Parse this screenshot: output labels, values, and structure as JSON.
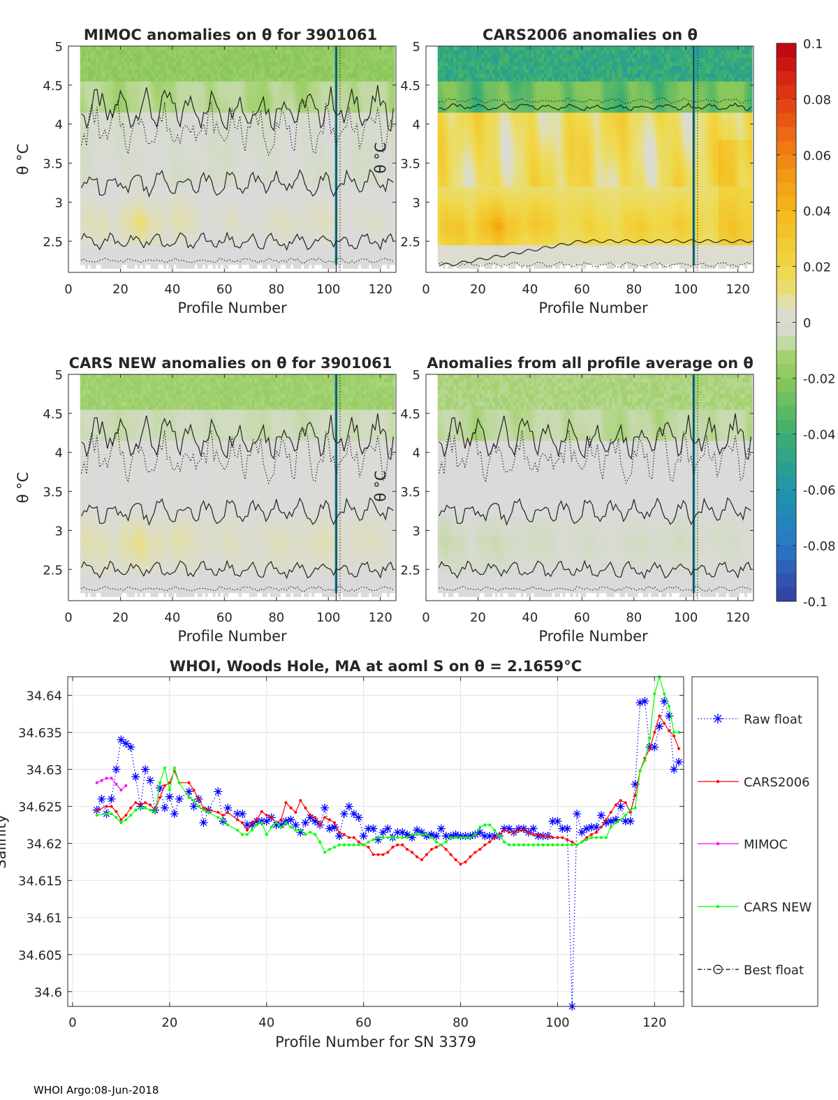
{
  "footer": "WHOI Argo:08-Jun-2018",
  "chart_data": [
    {
      "type": "heatmap",
      "title": "MIMOC anomalies on θ  for 3901061",
      "xlabel": "Profile Number",
      "ylabel": "θ °C",
      "xlim": [
        0,
        126
      ],
      "ylim": [
        2.1,
        5
      ],
      "xticks": [
        0,
        20,
        40,
        60,
        80,
        100,
        120
      ],
      "yticks": [
        2.5,
        3,
        3.5,
        4,
        4.5,
        5
      ],
      "data_xrange": [
        5,
        125
      ],
      "field": {
        "surface": -0.02,
        "upper": -0.012,
        "mid": -0.003,
        "warm_band": 0.012,
        "deep": 0.0,
        "warm_center": 2.75,
        "warm_peak_profile": 25
      }
    },
    {
      "type": "heatmap",
      "title": "CARS2006 anomalies on θ",
      "xlabel": "Profile Number",
      "ylabel": "θ °C",
      "xlim": [
        0,
        126
      ],
      "ylim": [
        2.1,
        5
      ],
      "xticks": [
        0,
        20,
        40,
        60,
        80,
        100,
        120
      ],
      "yticks": [
        2.5,
        3,
        3.5,
        4,
        4.5,
        5
      ],
      "data_xrange": [
        5,
        125
      ],
      "field": {
        "surface": -0.05,
        "upper": -0.035,
        "mid": 0.025,
        "warm_band": 0.035,
        "deep": 0.002,
        "warm_center": 2.7,
        "warm_peak_profile": 22
      }
    },
    {
      "type": "heatmap",
      "title": "CARS NEW anomalies on θ for 3901061",
      "xlabel": "Profile Number",
      "ylabel": "θ °C",
      "xlim": [
        0,
        126
      ],
      "ylim": [
        2.1,
        5
      ],
      "xticks": [
        0,
        20,
        40,
        60,
        80,
        100,
        120
      ],
      "yticks": [
        2.5,
        3,
        3.5,
        4,
        4.5,
        5
      ],
      "data_xrange": [
        5,
        125
      ],
      "field": {
        "surface": -0.015,
        "upper": -0.006,
        "mid": 0.001,
        "warm_band": 0.01,
        "deep": 0.0,
        "warm_center": 2.85,
        "warm_peak_profile": 22
      }
    },
    {
      "type": "heatmap",
      "title": "Anomalies from all profile average on θ",
      "xlabel": "Profile Number",
      "ylabel": "θ °C",
      "xlim": [
        0,
        126
      ],
      "ylim": [
        2.1,
        5
      ],
      "xticks": [
        0,
        20,
        40,
        60,
        80,
        100,
        120
      ],
      "yticks": [
        2.5,
        3,
        3.5,
        4,
        4.5,
        5
      ],
      "data_xrange": [
        5,
        125
      ],
      "field": {
        "surface": -0.012,
        "upper": -0.01,
        "mid": 0.0,
        "warm_band": -0.008,
        "deep": 0.0,
        "warm_center": 2.85,
        "warm_peak_profile": 10
      }
    },
    {
      "type": "colorbar",
      "ticks": [
        "0.1",
        "0.08",
        "0.06",
        "0.04",
        "0.02",
        "0",
        "-0.02",
        "-0.04",
        "-0.06",
        "-0.08",
        "-0.1"
      ],
      "range": [
        -0.1,
        0.1
      ],
      "colormap": "parula"
    },
    {
      "type": "line",
      "title": "WHOI, Woods Hole, MA at aoml S on θ = 2.1659°C",
      "xlabel": "Profile Number for SN 3379",
      "ylabel": "Salinity",
      "xlim": [
        -1,
        126
      ],
      "ylim": [
        34.598,
        34.6425
      ],
      "xticks": [
        0,
        20,
        40,
        60,
        80,
        100,
        120
      ],
      "yticks": [
        34.6,
        34.605,
        34.61,
        34.615,
        34.62,
        34.625,
        34.63,
        34.635,
        34.64
      ],
      "grid": true,
      "legend_position": "outside-right",
      "series": [
        {
          "name": "Raw float",
          "color": "#0000ff",
          "style": "dotted-star",
          "x": [
            5,
            6,
            7,
            8,
            9,
            10,
            11,
            12,
            13,
            14,
            15,
            16,
            17,
            18,
            19,
            20,
            21,
            22,
            24,
            25,
            26,
            27,
            28,
            30,
            31,
            32,
            34,
            35,
            36,
            37,
            38,
            39,
            40,
            41,
            42,
            43,
            44,
            45,
            46,
            47,
            48,
            49,
            50,
            51,
            52,
            53,
            54,
            55,
            56,
            57,
            58,
            59,
            60,
            61,
            62,
            63,
            64,
            65,
            66,
            67,
            68,
            69,
            70,
            71,
            72,
            73,
            74,
            75,
            76,
            77,
            78,
            79,
            80,
            81,
            82,
            83,
            84,
            85,
            86,
            87,
            88,
            89,
            90,
            91,
            92,
            93,
            94,
            95,
            96,
            97,
            98,
            99,
            100,
            101,
            102,
            103,
            104,
            105,
            106,
            107,
            108,
            109,
            110,
            111,
            112,
            113,
            114,
            115,
            116,
            117,
            118,
            119,
            120,
            121,
            122,
            123,
            124,
            125
          ],
          "y": [
            34.6245,
            34.626,
            34.624,
            34.626,
            34.63,
            34.634,
            34.6335,
            34.633,
            34.629,
            34.625,
            34.63,
            34.6285,
            34.6245,
            34.6275,
            34.6248,
            34.6263,
            34.624,
            34.626,
            34.627,
            34.625,
            34.626,
            34.6228,
            34.6245,
            34.627,
            34.623,
            34.6248,
            34.624,
            34.624,
            34.6225,
            34.6225,
            34.623,
            34.623,
            34.623,
            34.6235,
            34.6225,
            34.6225,
            34.623,
            34.6232,
            34.6225,
            34.6215,
            34.6228,
            34.6235,
            34.623,
            34.6225,
            34.6248,
            34.622,
            34.6222,
            34.621,
            34.624,
            34.625,
            34.624,
            34.6235,
            34.621,
            34.622,
            34.622,
            34.6205,
            34.6215,
            34.622,
            34.6208,
            34.6215,
            34.6215,
            34.6212,
            34.6208,
            34.6218,
            34.6215,
            34.621,
            34.6212,
            34.621,
            34.622,
            34.621,
            34.621,
            34.6212,
            34.621,
            34.621,
            34.621,
            34.6212,
            34.6215,
            34.621,
            34.621,
            34.621,
            34.621,
            34.622,
            34.622,
            34.6215,
            34.622,
            34.622,
            34.6215,
            34.622,
            34.621,
            34.621,
            34.621,
            34.623,
            34.623,
            34.622,
            34.622,
            34.598,
            34.624,
            34.6215,
            34.622,
            34.6222,
            34.6222,
            34.6238,
            34.6228,
            34.623,
            34.6232,
            34.625,
            34.623,
            34.623,
            34.628,
            34.639,
            34.6392,
            34.633,
            34.633,
            34.6358,
            34.6392,
            34.6372,
            34.63,
            34.631
          ]
        },
        {
          "name": "CARS2006",
          "color": "#ff0000",
          "style": "solid-dot",
          "x": [
            5,
            7,
            8,
            9,
            10,
            11,
            12,
            13,
            14,
            15,
            16,
            17,
            18,
            19,
            20,
            21,
            22,
            24,
            25,
            26,
            27,
            28,
            30,
            31,
            32,
            34,
            35,
            36,
            37,
            38,
            39,
            40,
            41,
            42,
            43,
            44,
            45,
            46,
            47,
            48,
            49,
            50,
            51,
            52,
            53,
            54,
            55,
            56,
            57,
            58,
            59,
            60,
            61,
            62,
            63,
            64,
            65,
            66,
            67,
            68,
            69,
            70,
            71,
            72,
            73,
            74,
            75,
            76,
            77,
            78,
            79,
            80,
            81,
            82,
            83,
            84,
            85,
            86,
            87,
            88,
            89,
            90,
            91,
            92,
            93,
            94,
            95,
            96,
            97,
            98,
            99,
            100,
            101,
            102,
            103,
            104,
            105,
            106,
            107,
            108,
            109,
            110,
            111,
            112,
            113,
            114,
            115,
            116,
            117,
            118,
            119,
            120,
            121,
            122,
            123,
            124,
            125
          ],
          "y": [
            34.6245,
            34.625,
            34.625,
            34.6243,
            34.6232,
            34.6238,
            34.6248,
            34.6255,
            34.6253,
            34.6255,
            34.6252,
            34.6245,
            34.6262,
            34.6278,
            34.6282,
            34.6298,
            34.6282,
            34.6282,
            34.6272,
            34.626,
            34.6248,
            34.6245,
            34.6242,
            34.6238,
            34.6242,
            34.6232,
            34.6228,
            34.6218,
            34.6228,
            34.6232,
            34.6243,
            34.6238,
            34.6235,
            34.6228,
            34.6232,
            34.6255,
            34.6248,
            34.6242,
            34.6258,
            34.6248,
            34.6238,
            34.6235,
            34.6225,
            34.6235,
            34.6232,
            34.6228,
            34.6215,
            34.6212,
            34.6208,
            34.6208,
            34.6202,
            34.6198,
            34.6195,
            34.6185,
            34.6185,
            34.6185,
            34.6188,
            34.6195,
            34.6198,
            34.6198,
            34.6192,
            34.6188,
            34.6182,
            34.6178,
            34.6185,
            34.6192,
            34.6195,
            34.6198,
            34.6192,
            34.6185,
            34.6178,
            34.6172,
            34.6175,
            34.6182,
            34.6188,
            34.6192,
            34.6198,
            34.6202,
            34.6208,
            34.6212,
            34.6218,
            34.6215,
            34.6215,
            34.6218,
            34.6218,
            34.6215,
            34.6212,
            34.6212,
            34.621,
            34.621,
            34.6208,
            34.6208,
            34.6208,
            34.6205,
            34.6202,
            34.6198,
            34.6202,
            34.6208,
            34.6212,
            34.6215,
            34.6222,
            34.6232,
            34.6242,
            34.6252,
            34.6258,
            34.6255,
            34.6242,
            34.6265,
            34.6298,
            34.6315,
            34.6328,
            34.635,
            34.6372,
            34.6362,
            34.6352,
            34.6345,
            34.6328
          ]
        },
        {
          "name": "MIMOC",
          "color": "#ff00ff",
          "style": "solid-dot",
          "x": [
            5,
            6,
            7,
            8,
            9,
            10,
            11
          ],
          "y": [
            34.6282,
            34.6285,
            34.6288,
            34.6288,
            34.628,
            34.6272,
            34.6278
          ]
        },
        {
          "name": "CARS NEW",
          "color": "#00ff00",
          "style": "solid-dot",
          "x": [
            5,
            7,
            8,
            9,
            10,
            11,
            12,
            13,
            14,
            15,
            16,
            17,
            18,
            19,
            20,
            21,
            22,
            24,
            25,
            26,
            27,
            28,
            30,
            31,
            32,
            34,
            35,
            36,
            37,
            38,
            39,
            40,
            41,
            42,
            43,
            44,
            45,
            46,
            47,
            48,
            49,
            50,
            51,
            52,
            53,
            54,
            55,
            56,
            57,
            58,
            59,
            60,
            61,
            62,
            63,
            64,
            65,
            66,
            67,
            68,
            69,
            70,
            71,
            72,
            73,
            74,
            75,
            76,
            77,
            78,
            79,
            80,
            81,
            82,
            83,
            84,
            85,
            86,
            87,
            88,
            89,
            90,
            91,
            92,
            93,
            94,
            95,
            96,
            97,
            98,
            99,
            100,
            101,
            102,
            103,
            104,
            105,
            106,
            107,
            108,
            109,
            110,
            111,
            112,
            113,
            114,
            115,
            116,
            117,
            118,
            119,
            120,
            121,
            122,
            123,
            124,
            125
          ],
          "y": [
            34.6238,
            34.624,
            34.624,
            34.6235,
            34.6228,
            34.6232,
            34.6238,
            34.6245,
            34.6248,
            34.6248,
            34.6245,
            34.6242,
            34.6282,
            34.6302,
            34.6272,
            34.6302,
            34.6282,
            34.6262,
            34.6258,
            34.625,
            34.6245,
            34.6242,
            34.6235,
            34.6232,
            34.6225,
            34.6218,
            34.6212,
            34.6212,
            34.6218,
            34.6225,
            34.6228,
            34.6212,
            34.6222,
            34.6228,
            34.6222,
            34.6228,
            34.6222,
            34.6218,
            34.6218,
            34.6212,
            34.6215,
            34.6212,
            34.6202,
            34.6188,
            34.6192,
            34.6195,
            34.6198,
            34.6198,
            34.6198,
            34.6198,
            34.6198,
            34.6198,
            34.6202,
            34.6205,
            34.6208,
            34.6208,
            34.6208,
            34.6208,
            34.6208,
            34.6208,
            34.6208,
            34.6212,
            34.6212,
            34.6212,
            34.6212,
            34.6208,
            34.6202,
            34.6198,
            34.6202,
            34.6208,
            34.6208,
            34.6208,
            34.6208,
            34.6208,
            34.6212,
            34.6222,
            34.6225,
            34.6225,
            34.6218,
            34.621,
            34.6202,
            34.6198,
            34.6198,
            34.6198,
            34.6198,
            34.6198,
            34.6198,
            34.6198,
            34.6198,
            34.6198,
            34.6198,
            34.6198,
            34.6198,
            34.6198,
            34.6198,
            34.6198,
            34.6202,
            34.6205,
            34.6208,
            34.6208,
            34.6208,
            34.6208,
            34.6222,
            34.6228,
            34.6232,
            34.6238,
            34.6245,
            34.6248,
            34.6298,
            34.6312,
            34.6342,
            34.6402,
            34.6425,
            34.6402,
            34.6385,
            34.635,
            34.635
          ]
        },
        {
          "name": "Best float",
          "color": "#000000",
          "style": "dashdot-circle",
          "x": [],
          "y": []
        }
      ]
    }
  ]
}
